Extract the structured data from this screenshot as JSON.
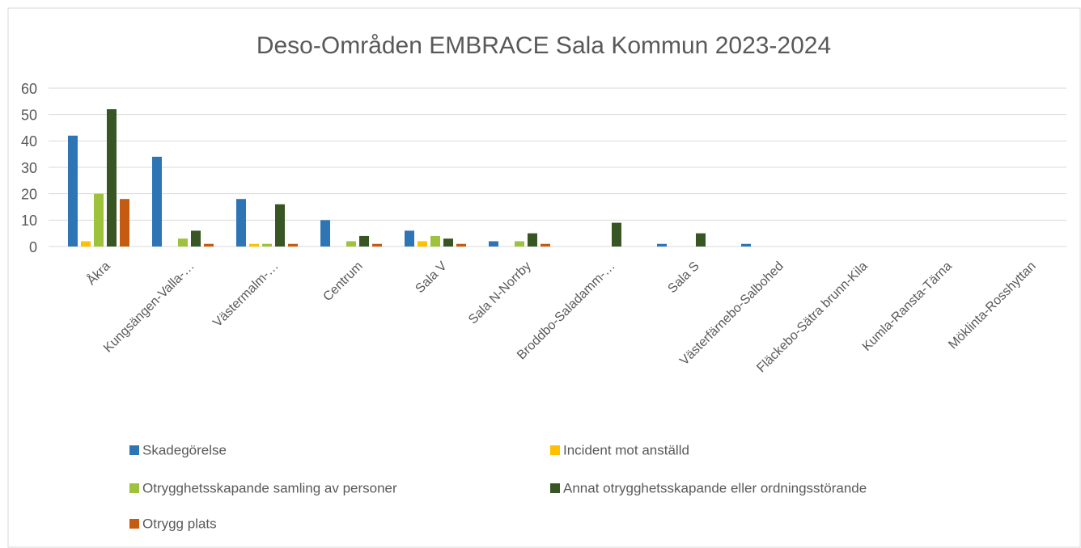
{
  "chart_data": {
    "type": "bar",
    "title": "Deso-Områden EMBRACE Sala Kommun 2023-2024",
    "categories": [
      "Åkra",
      "Kungsängen-Valla-…",
      "Västermalm-…",
      "Centrum",
      "Sala V",
      "Sala N-Norrby",
      "Broddbo-Saladamm-…",
      "Sala S",
      "Västerfärnebo-Salbohed",
      "Fläckebo-Sätra brunn-Kila",
      "Kumla-Ransta-Tärna",
      "Möklinta-Rosshyttan"
    ],
    "series": [
      {
        "name": "Skadegörelse",
        "color": "#2e75b6",
        "values": [
          42,
          34,
          18,
          10,
          6,
          2,
          0,
          1,
          1,
          0,
          0,
          0
        ]
      },
      {
        "name": "Incident mot anställd",
        "color": "#ffc000",
        "values": [
          2,
          0,
          1,
          0,
          2,
          0,
          0,
          0,
          0,
          0,
          0,
          0
        ]
      },
      {
        "name": "Otrygghetsskapande samling av personer",
        "color": "#9dc23b",
        "values": [
          20,
          3,
          1,
          2,
          4,
          2,
          0,
          0,
          0,
          0,
          0,
          0
        ]
      },
      {
        "name": "Annat otrygghetsskapande eller ordningsstörande",
        "color": "#375623",
        "values": [
          52,
          6,
          16,
          4,
          3,
          5,
          9,
          5,
          0,
          0,
          0,
          0
        ]
      },
      {
        "name": "Otrygg plats",
        "color": "#c55a11",
        "values": [
          18,
          1,
          1,
          1,
          1,
          1,
          0,
          0,
          0,
          0,
          0,
          0
        ]
      }
    ],
    "ylim": [
      0,
      60
    ],
    "yticks": [
      0,
      10,
      20,
      30,
      40,
      50,
      60
    ],
    "grid": true,
    "legend": "bottom"
  }
}
